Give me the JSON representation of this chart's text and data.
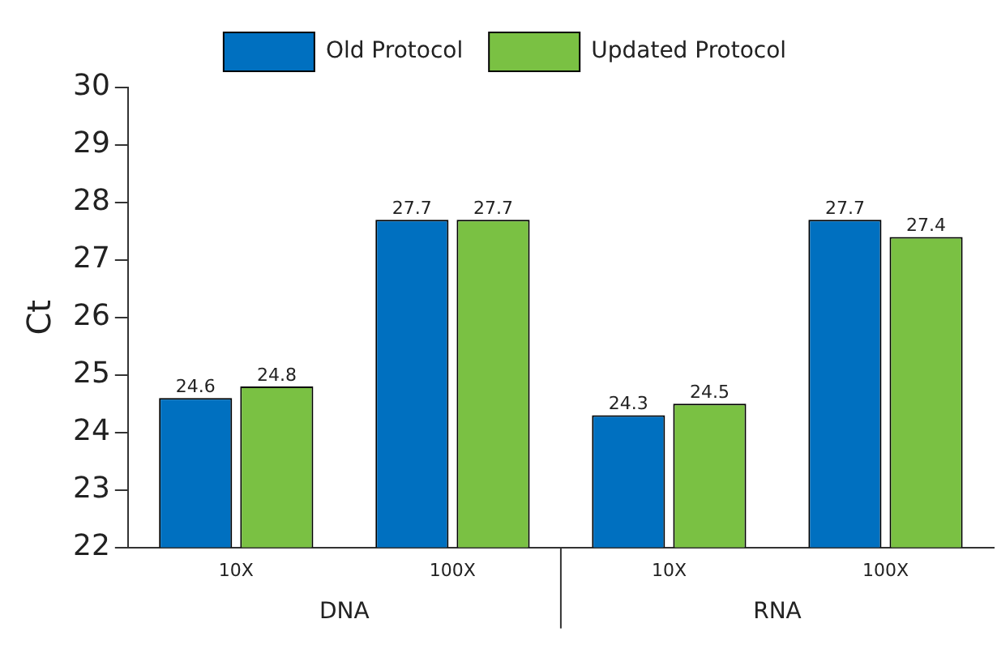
{
  "chart_data": {
    "type": "bar",
    "ylabel": "Ct",
    "categories": [
      "10X",
      "100X",
      "10X",
      "100X"
    ],
    "series": [
      {
        "name": "Old Protocol",
        "color": "#0070c0",
        "values": [
          24.6,
          27.7,
          24.3,
          27.7
        ]
      },
      {
        "name": "Updated Protocol",
        "color": "#7ac143",
        "values": [
          24.8,
          27.7,
          24.5,
          27.4
        ]
      }
    ],
    "ylim": [
      22,
      30
    ],
    "yticks": [
      22,
      23,
      24,
      25,
      26,
      27,
      28,
      29,
      30
    ],
    "grid": false,
    "legend": "top",
    "data_labels": true,
    "annotations": [
      "DNA",
      "RNA"
    ]
  }
}
